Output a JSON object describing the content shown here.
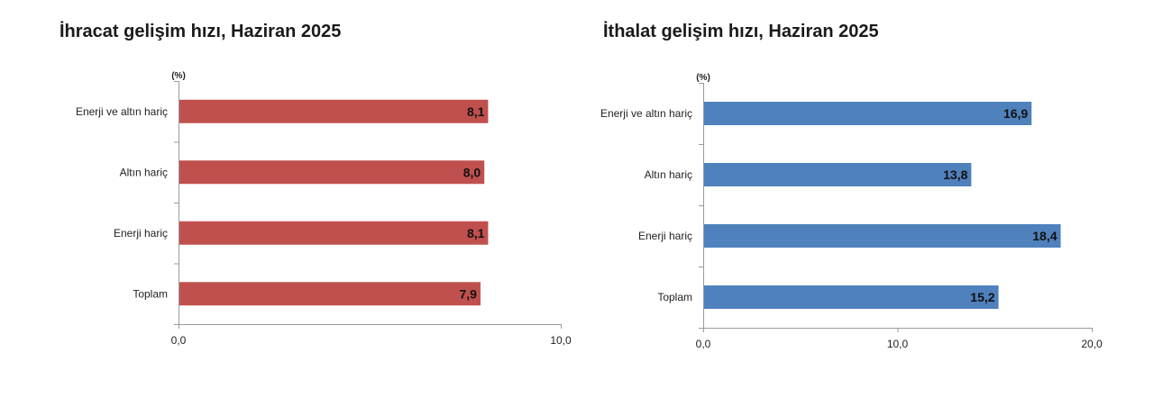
{
  "chart_data": [
    {
      "type": "bar",
      "orientation": "horizontal",
      "title": "İhracat gelişim hızı, Haziran 2025",
      "unit_label": "(%)",
      "categories": [
        "Enerji ve altın hariç",
        "Altın hariç",
        "Enerji hariç",
        "Toplam"
      ],
      "values": [
        8.1,
        8.0,
        8.1,
        7.9
      ],
      "data_labels": [
        "8,1",
        "8,0",
        "8,1",
        "7,9"
      ],
      "xlim": [
        0,
        10
      ],
      "ticks": [
        0,
        10
      ],
      "tick_labels": [
        "0,0",
        "10,0"
      ],
      "color": "#c0504d",
      "grid": false
    },
    {
      "type": "bar",
      "orientation": "horizontal",
      "title": "İthalat gelişim hızı, Haziran 2025",
      "unit_label": "(%)",
      "categories": [
        "Enerji ve altın hariç",
        "Altın hariç",
        "Enerji hariç",
        "Toplam"
      ],
      "values": [
        16.9,
        13.8,
        18.4,
        15.2
      ],
      "data_labels": [
        "16,9",
        "13,8",
        "18,4",
        "15,2"
      ],
      "xlim": [
        0,
        20
      ],
      "ticks": [
        0,
        10,
        20
      ],
      "tick_labels": [
        "0,0",
        "10,0",
        "20,0"
      ],
      "color": "#4f81bd",
      "grid": false
    }
  ]
}
